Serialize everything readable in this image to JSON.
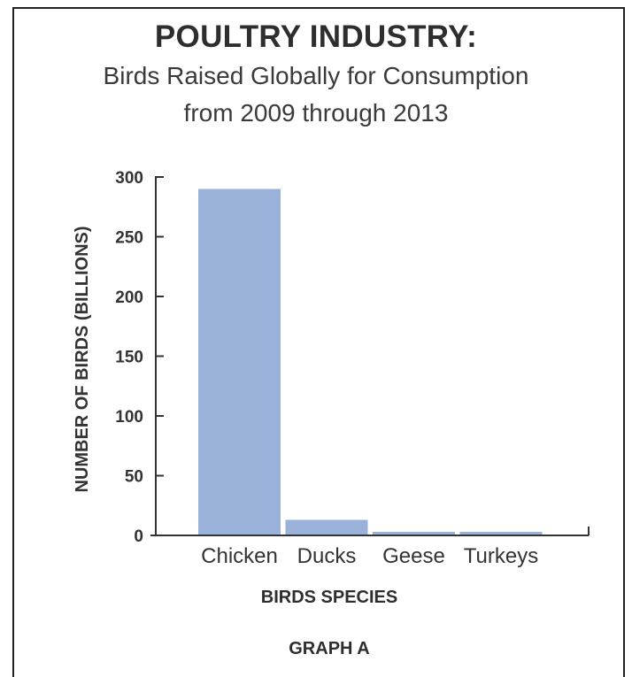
{
  "header": {
    "title": "POULTRY INDUSTRY:",
    "subtitle_line1": "Birds Raised Globally for Consumption",
    "subtitle_line2": "from 2009 through 2013"
  },
  "caption": "GRAPH A",
  "colors": {
    "bar": "#9ab1d9",
    "axis": "#333333",
    "text": "#333333"
  },
  "chart_data": {
    "type": "bar",
    "title": "POULTRY INDUSTRY:",
    "subtitle": "Birds Raised Globally for Consumption from 2009 through 2013",
    "categories": [
      "Chicken",
      "Ducks",
      "Geese",
      "Turkeys"
    ],
    "values": [
      290,
      13,
      3,
      3
    ],
    "xlabel": "BIRDS SPECIES",
    "ylabel": "NUMBER OF BIRDS (BILLIONS)",
    "ylim": [
      0,
      300
    ],
    "yticks": [
      0,
      50,
      100,
      150,
      200,
      250,
      300
    ],
    "grid": false,
    "legend": "none"
  }
}
